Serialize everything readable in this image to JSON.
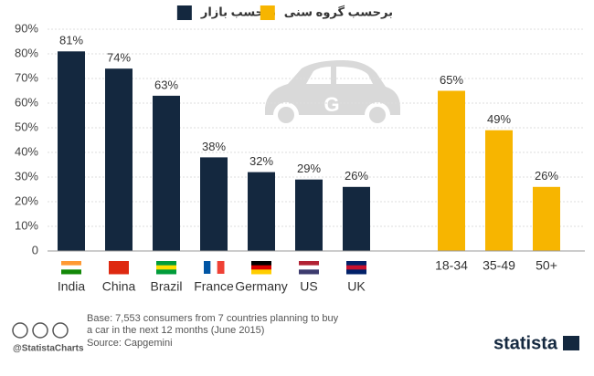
{
  "chart_data": {
    "type": "bar",
    "categories": [
      "India",
      "China",
      "Brazil",
      "France",
      "Germany",
      "US",
      "UK",
      "18-34",
      "35-49",
      "50+"
    ],
    "series": [
      {
        "name": "برحسب بازار",
        "color": "#14283f",
        "values": [
          81,
          74,
          63,
          38,
          32,
          29,
          26,
          null,
          null,
          null
        ],
        "value_labels": [
          "81%",
          "74%",
          "63%",
          "38%",
          "32%",
          "29%",
          "26%",
          null,
          null,
          null
        ]
      },
      {
        "name": "برحسب گروه سنی",
        "color": "#f7b500",
        "values": [
          null,
          null,
          null,
          null,
          null,
          null,
          null,
          65,
          49,
          26
        ],
        "value_labels": [
          null,
          null,
          null,
          null,
          null,
          null,
          null,
          "65%",
          "49%",
          "26%"
        ]
      }
    ],
    "ylim": [
      0,
      90
    ],
    "yticks": [
      {
        "value": 0,
        "label": "0"
      },
      {
        "value": 10,
        "label": "10%"
      },
      {
        "value": 20,
        "label": "20%"
      },
      {
        "value": 30,
        "label": "30%"
      },
      {
        "value": 40,
        "label": "40%"
      },
      {
        "value": 50,
        "label": "50%"
      },
      {
        "value": 60,
        "label": "60%"
      },
      {
        "value": 70,
        "label": "70%"
      },
      {
        "value": 80,
        "label": "80%"
      },
      {
        "value": 90,
        "label": "90%"
      }
    ],
    "grid": true,
    "notes": [
      "Base: 7,553 consumers from 7 countries planning to buy",
      "a car in the next 12 months (June 2015)"
    ],
    "source": "Source: Capgemini",
    "credit": "@StatistaCharts",
    "brand": "statista"
  }
}
